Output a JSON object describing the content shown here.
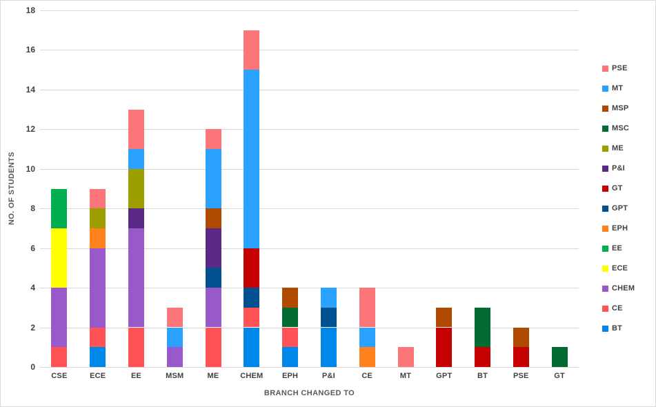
{
  "chart_data": {
    "type": "bar",
    "stacked": true,
    "xlabel": "BRANCH CHANGED TO",
    "ylabel": "NO. OF STUDENTS",
    "ylim": [
      0,
      18
    ],
    "yticks": [
      0,
      2,
      4,
      6,
      8,
      10,
      12,
      14,
      16,
      18
    ],
    "grid": true,
    "legend_position": "right",
    "legend_order": "reverse-of-series",
    "categories": [
      "CSE",
      "ECE",
      "EE",
      "MSM",
      "ME",
      "CHEM",
      "EPH",
      "P&I",
      "CE",
      "MT",
      "GPT",
      "BT",
      "PSE",
      "GT"
    ],
    "series": [
      {
        "name": "BT",
        "color": "#0087EA",
        "values": [
          0,
          1,
          0,
          0,
          0,
          2,
          1,
          2,
          0,
          0,
          0,
          0,
          0,
          0
        ]
      },
      {
        "name": "CE",
        "color": "#FF5355",
        "values": [
          1,
          1,
          2,
          0,
          2,
          1,
          1,
          0,
          0,
          0,
          0,
          0,
          0,
          0
        ]
      },
      {
        "name": "CHEM",
        "color": "#9859CB",
        "values": [
          3,
          4,
          5,
          1,
          2,
          0,
          0,
          0,
          0,
          0,
          0,
          0,
          0,
          0
        ]
      },
      {
        "name": "ECE",
        "color": "#FFFF00",
        "values": [
          3,
          0,
          0,
          0,
          0,
          0,
          0,
          0,
          0,
          0,
          0,
          0,
          0,
          0
        ]
      },
      {
        "name": "EE",
        "color": "#00AE50",
        "values": [
          2,
          0,
          0,
          0,
          0,
          0,
          0,
          0,
          0,
          0,
          0,
          0,
          0,
          0
        ]
      },
      {
        "name": "EPH",
        "color": "#FF821E",
        "values": [
          0,
          1,
          0,
          0,
          0,
          0,
          0,
          0,
          1,
          0,
          0,
          0,
          0,
          0
        ]
      },
      {
        "name": "GPT",
        "color": "#015090",
        "values": [
          0,
          0,
          0,
          0,
          1,
          1,
          0,
          1,
          0,
          0,
          0,
          0,
          0,
          0
        ]
      },
      {
        "name": "GT",
        "color": "#C50102",
        "values": [
          0,
          0,
          0,
          0,
          0,
          2,
          0,
          0,
          0,
          0,
          2,
          1,
          1,
          0
        ]
      },
      {
        "name": "P&I",
        "color": "#5B2A87",
        "values": [
          0,
          0,
          1,
          0,
          2,
          0,
          0,
          0,
          0,
          0,
          0,
          0,
          0,
          0
        ]
      },
      {
        "name": "ME",
        "color": "#9C9E00",
        "values": [
          0,
          1,
          2,
          0,
          0,
          0,
          0,
          0,
          0,
          0,
          0,
          0,
          0,
          0
        ]
      },
      {
        "name": "MSC",
        "color": "#026B31",
        "values": [
          0,
          0,
          0,
          0,
          0,
          0,
          1,
          0,
          0,
          0,
          0,
          2,
          0,
          1
        ]
      },
      {
        "name": "MSP",
        "color": "#B04A00",
        "values": [
          0,
          0,
          0,
          0,
          1,
          0,
          1,
          0,
          0,
          0,
          1,
          0,
          1,
          0
        ]
      },
      {
        "name": "MT",
        "color": "#29A3FF",
        "values": [
          0,
          0,
          1,
          1,
          3,
          9,
          0,
          1,
          1,
          0,
          0,
          0,
          0,
          0
        ]
      },
      {
        "name": "PSE",
        "color": "#FC7679",
        "values": [
          0,
          1,
          2,
          1,
          1,
          2,
          0,
          0,
          2,
          1,
          0,
          0,
          0,
          0
        ]
      }
    ]
  },
  "colors": {
    "gridline": "#d9d9d9",
    "tick_text": "#404040",
    "axis_title_text": "#595959",
    "chart_border": "#d9d9d9",
    "background": "#ffffff"
  }
}
